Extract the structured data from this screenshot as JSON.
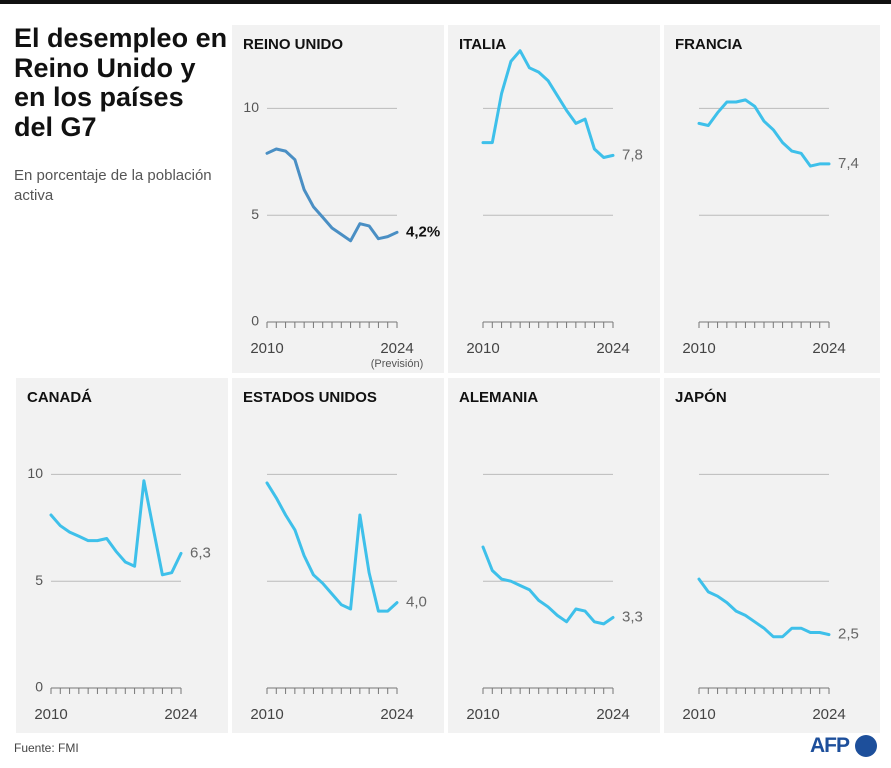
{
  "title": "El desempleo en Reino Unido y en los países del G7",
  "subtitle": "En porcentaje de la población activa",
  "source": "Fuente: FMI",
  "logo": "AFP",
  "chart_data": [
    {
      "type": "line",
      "title": "REINO UNIDO",
      "color": "#4a8fc4",
      "ytick_labels": true,
      "label_emphasis": true,
      "x": [
        2010,
        2011,
        2012,
        2013,
        2014,
        2015,
        2016,
        2017,
        2018,
        2019,
        2020,
        2021,
        2022,
        2023,
        2024
      ],
      "values": [
        7.9,
        8.1,
        8.0,
        7.6,
        6.2,
        5.4,
        4.9,
        4.4,
        4.1,
        3.8,
        4.6,
        4.5,
        3.9,
        4.0,
        4.2
      ],
      "value_labels": [
        null,
        null,
        null,
        null,
        null,
        null,
        null,
        null,
        null,
        null,
        null,
        null,
        null,
        null,
        "4,2%"
      ],
      "annotation": "(Previsión)",
      "xlim": [
        2010,
        2024
      ],
      "xticks": [
        2010,
        2024
      ],
      "ylim": [
        0,
        12.5
      ],
      "yticks": [
        0,
        5,
        10
      ]
    },
    {
      "type": "line",
      "title": "ITALIA",
      "color": "#3ec0ea",
      "ytick_labels": false,
      "label_emphasis": false,
      "x": [
        2010,
        2011,
        2012,
        2013,
        2014,
        2015,
        2016,
        2017,
        2018,
        2019,
        2020,
        2021,
        2022,
        2023,
        2024
      ],
      "values": [
        8.4,
        8.4,
        10.7,
        12.2,
        12.7,
        11.9,
        11.7,
        11.3,
        10.6,
        9.9,
        9.3,
        9.5,
        8.1,
        7.7,
        7.8
      ],
      "value_labels": [
        null,
        null,
        null,
        null,
        null,
        null,
        null,
        null,
        null,
        null,
        null,
        null,
        null,
        null,
        "7,8"
      ],
      "xlim": [
        2010,
        2024
      ],
      "xticks": [
        2010,
        2024
      ],
      "ylim": [
        0,
        12.5
      ],
      "yticks": [
        0,
        5,
        10
      ]
    },
    {
      "type": "line",
      "title": "FRANCIA",
      "color": "#3ec0ea",
      "ytick_labels": false,
      "label_emphasis": false,
      "x": [
        2010,
        2011,
        2012,
        2013,
        2014,
        2015,
        2016,
        2017,
        2018,
        2019,
        2020,
        2021,
        2022,
        2023,
        2024
      ],
      "values": [
        9.3,
        9.2,
        9.8,
        10.3,
        10.3,
        10.4,
        10.1,
        9.4,
        9.0,
        8.4,
        8.0,
        7.9,
        7.3,
        7.4,
        7.4
      ],
      "value_labels": [
        null,
        null,
        null,
        null,
        null,
        null,
        null,
        null,
        null,
        null,
        null,
        null,
        null,
        null,
        "7,4"
      ],
      "xlim": [
        2010,
        2024
      ],
      "xticks": [
        2010,
        2024
      ],
      "ylim": [
        0,
        12.5
      ],
      "yticks": [
        0,
        5,
        10
      ]
    },
    {
      "type": "line",
      "title": "CANADÁ",
      "color": "#3ec0ea",
      "ytick_labels": true,
      "label_emphasis": false,
      "x": [
        2010,
        2011,
        2012,
        2013,
        2014,
        2015,
        2016,
        2017,
        2018,
        2019,
        2020,
        2021,
        2022,
        2023,
        2024
      ],
      "values": [
        8.1,
        7.6,
        7.3,
        7.1,
        6.9,
        6.9,
        7.0,
        6.4,
        5.9,
        5.7,
        9.7,
        7.5,
        5.3,
        5.4,
        6.3
      ],
      "value_labels": [
        null,
        null,
        null,
        null,
        null,
        null,
        null,
        null,
        null,
        null,
        null,
        null,
        null,
        null,
        "6,3"
      ],
      "xlim": [
        2010,
        2024
      ],
      "xticks": [
        2010,
        2024
      ],
      "ylim": [
        0,
        12.5
      ],
      "yticks": [
        0,
        5,
        10
      ]
    },
    {
      "type": "line",
      "title": "ESTADOS UNIDOS",
      "color": "#3ec0ea",
      "ytick_labels": false,
      "label_emphasis": false,
      "x": [
        2010,
        2011,
        2012,
        2013,
        2014,
        2015,
        2016,
        2017,
        2018,
        2019,
        2020,
        2021,
        2022,
        2023,
        2024
      ],
      "values": [
        9.6,
        8.9,
        8.1,
        7.4,
        6.2,
        5.3,
        4.9,
        4.4,
        3.9,
        3.7,
        8.1,
        5.4,
        3.6,
        3.6,
        4.0
      ],
      "value_labels": [
        null,
        null,
        null,
        null,
        null,
        null,
        null,
        null,
        null,
        null,
        null,
        null,
        null,
        null,
        "4,0"
      ],
      "xlim": [
        2010,
        2024
      ],
      "xticks": [
        2010,
        2024
      ],
      "ylim": [
        0,
        12.5
      ],
      "yticks": [
        0,
        5,
        10
      ]
    },
    {
      "type": "line",
      "title": "ALEMANIA",
      "color": "#3ec0ea",
      "ytick_labels": false,
      "label_emphasis": false,
      "x": [
        2010,
        2011,
        2012,
        2013,
        2014,
        2015,
        2016,
        2017,
        2018,
        2019,
        2020,
        2021,
        2022,
        2023,
        2024
      ],
      "values": [
        6.6,
        5.5,
        5.1,
        5.0,
        4.8,
        4.6,
        4.1,
        3.8,
        3.4,
        3.1,
        3.7,
        3.6,
        3.1,
        3.0,
        3.3
      ],
      "value_labels": [
        null,
        null,
        null,
        null,
        null,
        null,
        null,
        null,
        null,
        null,
        null,
        null,
        null,
        null,
        "3,3"
      ],
      "xlim": [
        2010,
        2024
      ],
      "xticks": [
        2010,
        2024
      ],
      "ylim": [
        0,
        12.5
      ],
      "yticks": [
        0,
        5,
        10
      ]
    },
    {
      "type": "line",
      "title": "JAPÓN",
      "color": "#3ec0ea",
      "ytick_labels": false,
      "label_emphasis": false,
      "x": [
        2010,
        2011,
        2012,
        2013,
        2014,
        2015,
        2016,
        2017,
        2018,
        2019,
        2020,
        2021,
        2022,
        2023,
        2024
      ],
      "values": [
        5.1,
        4.5,
        4.3,
        4.0,
        3.6,
        3.4,
        3.1,
        2.8,
        2.4,
        2.4,
        2.8,
        2.8,
        2.6,
        2.6,
        2.5
      ],
      "value_labels": [
        null,
        null,
        null,
        null,
        null,
        null,
        null,
        null,
        null,
        null,
        null,
        null,
        null,
        null,
        "2,5"
      ],
      "xlim": [
        2010,
        2024
      ],
      "xticks": [
        2010,
        2024
      ],
      "ylim": [
        0,
        12.5
      ],
      "yticks": [
        0,
        5,
        10
      ]
    }
  ]
}
